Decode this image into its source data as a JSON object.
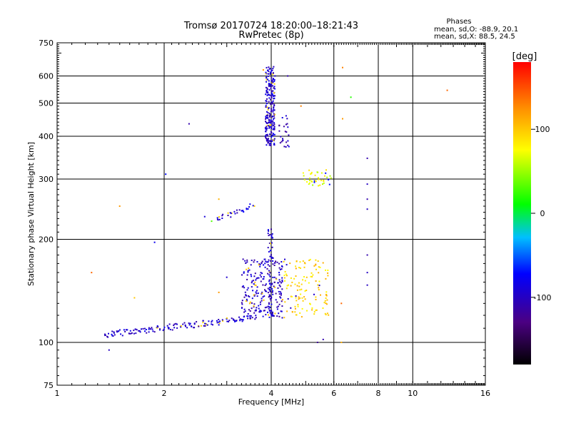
{
  "chart_data": {
    "type": "scatter",
    "title": "Tromsø 20170724 18:20:00–18:21:43",
    "subtitle": "RwPretec (8p)",
    "xlabel": "Frequency [MHz]",
    "ylabel": "Stationary phase Virtual Height [km]",
    "xscale": "log2",
    "yscale": "log",
    "xlim": [
      1,
      16
    ],
    "ylim": [
      75,
      750
    ],
    "xticks": [
      1,
      2,
      4,
      6,
      8,
      10,
      16
    ],
    "xtick_labels": [
      "1",
      "2",
      "4",
      "6",
      "8",
      "10",
      "16"
    ],
    "yticks": [
      75,
      100,
      200,
      300,
      400,
      500,
      600,
      750
    ],
    "ytick_labels": [
      "75",
      "100",
      "200",
      "300",
      "400",
      "500",
      "600",
      "750"
    ],
    "grid": true,
    "legend": {
      "title": "Phases",
      "line1": "mean, sd,O: -88.9, 20.1",
      "line2": "mean, sd,X:  88.5, 24.5"
    },
    "colorbar": {
      "label": "[deg]",
      "range": [
        -180,
        180
      ],
      "ticks": [
        100,
        0,
        -100
      ],
      "tick_labels": [
        "100",
        "0",
        "-100"
      ],
      "colormap": [
        "#000000",
        "#4b0082",
        "#0000ff",
        "#00bfff",
        "#00ff00",
        "#ffff00",
        "#ff8c00",
        "#ff0000"
      ]
    },
    "clusters": [
      {
        "name": "E-region trace",
        "x_from": 1.35,
        "x_to": 3.6,
        "y_from": 105,
        "y_to": 118,
        "n": 150,
        "phase": -95,
        "shape": "trace"
      },
      {
        "name": "F1 cusp cloud",
        "x_from": 3.3,
        "x_to": 4.3,
        "y_from": 118,
        "y_to": 175,
        "n": 230,
        "phase": -100,
        "shape": "cloud"
      },
      {
        "name": "F1 column",
        "x_from": 3.92,
        "x_to": 4.05,
        "y_from": 118,
        "y_to": 215,
        "n": 60,
        "phase": -95,
        "shape": "cloud"
      },
      {
        "name": "X-mode F1 cluster",
        "x_from": 4.3,
        "x_to": 5.8,
        "y_from": 118,
        "y_to": 175,
        "n": 130,
        "phase": 95,
        "shape": "cloud"
      },
      {
        "name": "F-region spread",
        "x_from": 3.85,
        "x_to": 4.1,
        "y_from": 375,
        "y_to": 640,
        "n": 230,
        "phase": -95,
        "shape": "cloud"
      },
      {
        "name": "F-region side lobe",
        "x_from": 4.2,
        "x_to": 4.5,
        "y_from": 370,
        "y_to": 460,
        "n": 25,
        "phase": -100,
        "shape": "cloud"
      },
      {
        "name": "F2 X-mode patch",
        "x_from": 4.9,
        "x_to": 5.9,
        "y_from": 285,
        "y_to": 320,
        "n": 40,
        "phase": 70,
        "shape": "cloud"
      },
      {
        "name": "Mid-height trace",
        "x_from": 2.8,
        "x_to": 3.55,
        "y_from": 228,
        "y_to": 252,
        "n": 30,
        "phase": -95,
        "shape": "trace"
      }
    ],
    "scattered_points": [
      {
        "x": 1.25,
        "y": 160,
        "phase": 140
      },
      {
        "x": 1.5,
        "y": 250,
        "phase": 120
      },
      {
        "x": 1.65,
        "y": 135,
        "phase": 100
      },
      {
        "x": 1.88,
        "y": 196,
        "phase": -80
      },
      {
        "x": 2.02,
        "y": 310,
        "phase": -70
      },
      {
        "x": 2.35,
        "y": 435,
        "phase": -110
      },
      {
        "x": 2.6,
        "y": 233,
        "phase": -90
      },
      {
        "x": 2.72,
        "y": 226,
        "phase": 30
      },
      {
        "x": 2.85,
        "y": 262,
        "phase": 110
      },
      {
        "x": 2.85,
        "y": 140,
        "phase": 120
      },
      {
        "x": 3.8,
        "y": 625,
        "phase": 120
      },
      {
        "x": 4.45,
        "y": 600,
        "phase": -110
      },
      {
        "x": 4.85,
        "y": 490,
        "phase": 130
      },
      {
        "x": 4.1,
        "y": 600,
        "phase": -90
      },
      {
        "x": 6.35,
        "y": 635,
        "phase": 130
      },
      {
        "x": 6.35,
        "y": 450,
        "phase": 120
      },
      {
        "x": 6.7,
        "y": 520,
        "phase": 20
      },
      {
        "x": 7.45,
        "y": 345,
        "phase": -110
      },
      {
        "x": 7.45,
        "y": 290,
        "phase": -100
      },
      {
        "x": 7.45,
        "y": 262,
        "phase": -110
      },
      {
        "x": 7.45,
        "y": 245,
        "phase": -100
      },
      {
        "x": 7.45,
        "y": 180,
        "phase": -110
      },
      {
        "x": 7.45,
        "y": 160,
        "phase": -100
      },
      {
        "x": 7.45,
        "y": 147,
        "phase": -100
      },
      {
        "x": 6.3,
        "y": 130,
        "phase": 140
      },
      {
        "x": 6.3,
        "y": 100,
        "phase": 110
      },
      {
        "x": 5.6,
        "y": 102,
        "phase": -110
      },
      {
        "x": 5.4,
        "y": 100,
        "phase": -120
      },
      {
        "x": 12.5,
        "y": 545,
        "phase": 140
      },
      {
        "x": 1.4,
        "y": 95,
        "phase": -100
      },
      {
        "x": 3.0,
        "y": 155,
        "phase": -95
      }
    ]
  }
}
